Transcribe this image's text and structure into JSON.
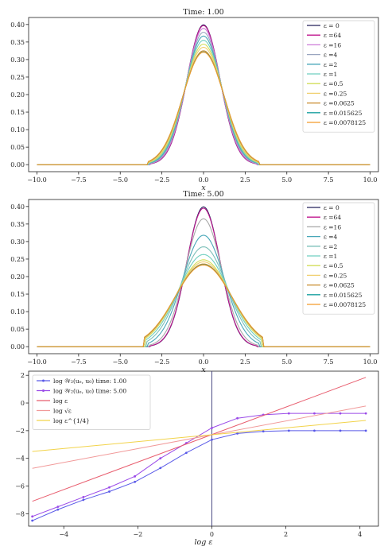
{
  "chart_data": [
    {
      "type": "line",
      "title": "Time: 1.00",
      "xlabel": "x",
      "ylabel": "",
      "xlim": [
        -10.5,
        10.5
      ],
      "ylim": [
        -0.02,
        0.42
      ],
      "xticks": [
        -10.0,
        -7.5,
        -5.0,
        -2.5,
        0.0,
        2.5,
        5.0,
        7.5,
        10.0
      ],
      "yticks": [
        0.0,
        0.05,
        0.1,
        0.15,
        0.2,
        0.25,
        0.3,
        0.35,
        0.4
      ],
      "xtick_labels": [
        "−10.0",
        "−7.5",
        "−5.0",
        "−2.5",
        "0.0",
        "2.5",
        "5.0",
        "7.5",
        "10.0"
      ],
      "ytick_labels": [
        "0.00",
        "0.05",
        "0.10",
        "0.15",
        "0.20",
        "0.25",
        "0.30",
        "0.35",
        "0.40"
      ],
      "legend_position": "top-right",
      "grid": false,
      "x_support": [
        -10,
        -3.4,
        3.4,
        10
      ],
      "series": [
        {
          "name": "ε = 0",
          "peak": 0.399,
          "color": "#24205a"
        },
        {
          "name": "ε =64",
          "peak": 0.397,
          "color": "#c0188f"
        },
        {
          "name": "ε =16",
          "peak": 0.389,
          "color": "#cc7ad8"
        },
        {
          "name": "ε =4",
          "peak": 0.378,
          "color": "#9aa6c0"
        },
        {
          "name": "ε =2",
          "peak": 0.367,
          "color": "#48a7b8"
        },
        {
          "name": "ε =1",
          "peak": 0.355,
          "color": "#6fcfc0"
        },
        {
          "name": "ε =0.5",
          "peak": 0.344,
          "color": "#d3de5a"
        },
        {
          "name": "ε =0.25",
          "peak": 0.335,
          "color": "#f0d070"
        },
        {
          "name": "ε =0.0625",
          "peak": 0.325,
          "color": "#c8892a"
        },
        {
          "name": "ε =0.015625",
          "peak": 0.322,
          "color": "#1aa0a0"
        },
        {
          "name": "ε =0.0078125",
          "peak": 0.321,
          "color": "#f39a2a"
        }
      ]
    },
    {
      "type": "line",
      "title": "Time: 5.00",
      "xlabel": "x",
      "ylabel": "",
      "xlim": [
        -10.5,
        10.5
      ],
      "ylim": [
        -0.02,
        0.42
      ],
      "xticks": [
        -10.0,
        -7.5,
        -5.0,
        -2.5,
        0.0,
        2.5,
        5.0,
        7.5,
        10.0
      ],
      "yticks": [
        0.0,
        0.05,
        0.1,
        0.15,
        0.2,
        0.25,
        0.3,
        0.35,
        0.4
      ],
      "xtick_labels": [
        "−10.0",
        "−7.5",
        "−5.0",
        "−2.5",
        "0.0",
        "2.5",
        "5.0",
        "7.5",
        "10.0"
      ],
      "ytick_labels": [
        "0.00",
        "0.05",
        "0.10",
        "0.15",
        "0.20",
        "0.25",
        "0.30",
        "0.35",
        "0.40"
      ],
      "legend_position": "top-right",
      "grid": false,
      "x_support": [
        -10,
        -3.7,
        3.7,
        10
      ],
      "series": [
        {
          "name": "ε = 0",
          "peak": 0.399,
          "color": "#24205a"
        },
        {
          "name": "ε =64",
          "peak": 0.395,
          "color": "#c0188f"
        },
        {
          "name": "ε =16",
          "peak": 0.365,
          "color": "#a7a7a7"
        },
        {
          "name": "ε =4",
          "peak": 0.318,
          "color": "#48a7b8"
        },
        {
          "name": "ε =2",
          "peak": 0.285,
          "color": "#7bbfb8"
        },
        {
          "name": "ε =1",
          "peak": 0.263,
          "color": "#6fcfc0"
        },
        {
          "name": "ε =0.5",
          "peak": 0.248,
          "color": "#d3de5a"
        },
        {
          "name": "ε =0.25",
          "peak": 0.242,
          "color": "#f0d070"
        },
        {
          "name": "ε =0.0625",
          "peak": 0.236,
          "color": "#c8892a"
        },
        {
          "name": "ε =0.015625",
          "peak": 0.234,
          "color": "#1aa0a0"
        },
        {
          "name": "ε =0.0078125",
          "peak": 0.233,
          "color": "#f39a2a"
        }
      ]
    },
    {
      "type": "line",
      "title": "",
      "xlabel": "log ε",
      "ylabel": "",
      "xlim": [
        -4.95,
        4.5
      ],
      "ylim": [
        -8.9,
        2.3
      ],
      "xticks": [
        -4,
        -2,
        0,
        2,
        4
      ],
      "yticks": [
        -8,
        -6,
        -4,
        -2,
        0,
        2
      ],
      "xtick_labels": [
        "−4",
        "−2",
        "0",
        "2",
        "4"
      ],
      "ytick_labels": [
        "−8",
        "−6",
        "−4",
        "−2",
        "0",
        "2"
      ],
      "vline_x": 0,
      "legend_position": "top-left",
      "grid": false,
      "series": [
        {
          "name": "log 𝒲₂(uₑ, u₀) time: 1.00",
          "color": "#5a5ae8",
          "marker": true,
          "x": [
            -4.85,
            -4.16,
            -3.47,
            -2.77,
            -2.08,
            -1.39,
            -0.69,
            0.0,
            0.69,
            1.39,
            2.08,
            2.77,
            3.47,
            4.16
          ],
          "y": [
            -8.5,
            -7.7,
            -7.0,
            -6.4,
            -5.7,
            -4.7,
            -3.6,
            -2.65,
            -2.2,
            -2.05,
            -2.0,
            -2.0,
            -2.0,
            -2.0
          ]
        },
        {
          "name": "log 𝒲₂(uₑ, u₀) time: 5.00",
          "color": "#9a4ae8",
          "marker": true,
          "x": [
            -4.85,
            -4.16,
            -3.47,
            -2.77,
            -2.08,
            -1.39,
            -0.69,
            0.0,
            0.69,
            1.39,
            2.08,
            2.77,
            3.47,
            4.16
          ],
          "y": [
            -8.2,
            -7.5,
            -6.8,
            -6.1,
            -5.3,
            -4.0,
            -2.9,
            -1.8,
            -1.1,
            -0.85,
            -0.75,
            -0.75,
            -0.75,
            -0.75
          ]
        },
        {
          "name": "log ε",
          "color": "#e85d6e",
          "marker": false,
          "x": [
            -4.85,
            4.16
          ],
          "y": [
            -7.1,
            1.85
          ]
        },
        {
          "name": "log √ε",
          "color": "#f19a9a",
          "marker": false,
          "x": [
            -4.85,
            4.16
          ],
          "y": [
            -4.72,
            -0.22
          ]
        },
        {
          "name": "log ε^{1/4}",
          "color": "#f2d34a",
          "marker": false,
          "x": [
            -4.85,
            4.16
          ],
          "y": [
            -3.5,
            -1.26
          ]
        }
      ]
    }
  ]
}
